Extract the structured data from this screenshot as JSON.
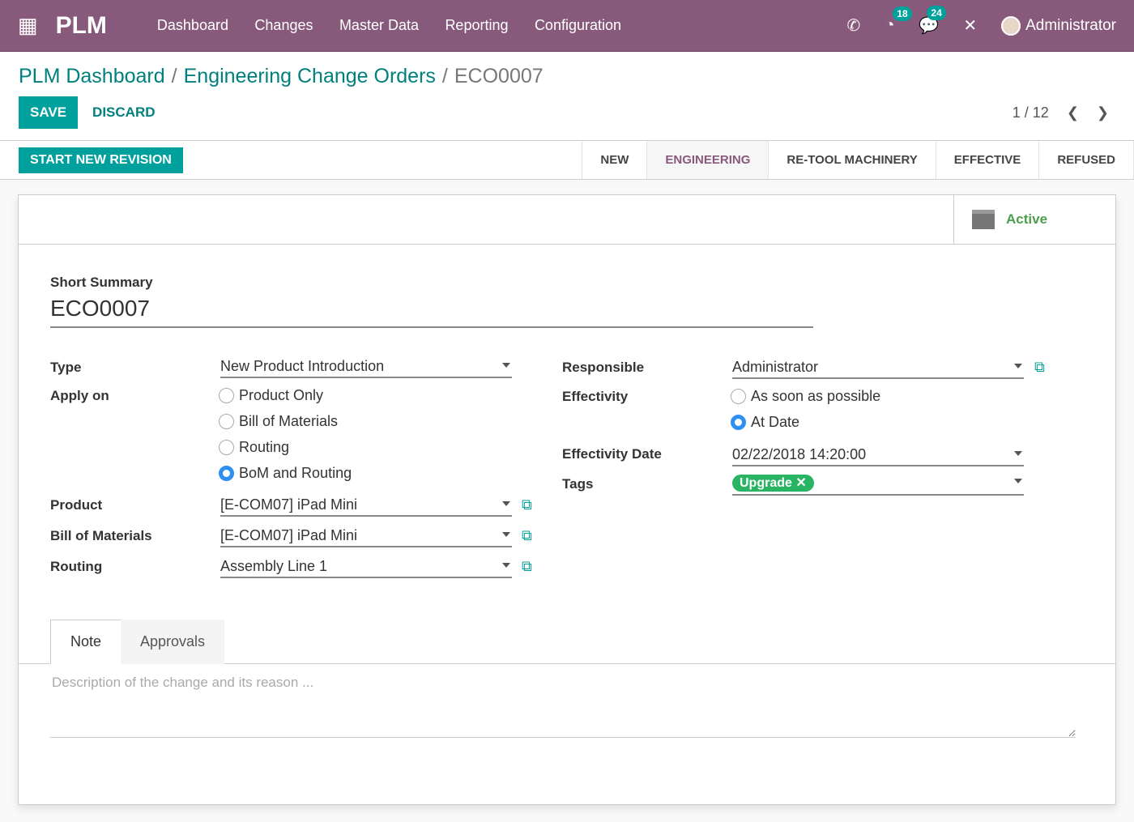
{
  "nav": {
    "brand": "PLM",
    "menu": [
      "Dashboard",
      "Changes",
      "Master Data",
      "Reporting",
      "Configuration"
    ],
    "activities_count": "18",
    "messages_count": "24",
    "user": "Administrator"
  },
  "breadcrumb": {
    "items": [
      "PLM Dashboard",
      "Engineering Change Orders"
    ],
    "current": "ECO0007"
  },
  "buttons": {
    "save": "SAVE",
    "discard": "DISCARD",
    "start_revision": "START NEW REVISION"
  },
  "pager": {
    "text": "1 / 12"
  },
  "stages": {
    "items": [
      "NEW",
      "ENGINEERING",
      "RE-TOOL MACHINERY",
      "EFFECTIVE",
      "REFUSED"
    ],
    "active": "ENGINEERING"
  },
  "active_button": "Active",
  "form": {
    "short_summary_label": "Short Summary",
    "short_summary": "ECO0007",
    "type_label": "Type",
    "type": "New Product Introduction",
    "apply_on_label": "Apply on",
    "apply_on_options": [
      "Product Only",
      "Bill of Materials",
      "Routing",
      "BoM and Routing"
    ],
    "apply_on_selected": "BoM and Routing",
    "product_label": "Product",
    "product": "[E-COM07] iPad Mini",
    "bom_label": "Bill of Materials",
    "bom": "[E-COM07] iPad Mini",
    "routing_label": "Routing",
    "routing": "Assembly Line 1",
    "responsible_label": "Responsible",
    "responsible": "Administrator",
    "effectivity_label": "Effectivity",
    "effectivity_options": [
      "As soon as possible",
      "At Date"
    ],
    "effectivity_selected": "At Date",
    "effectivity_date_label": "Effectivity Date",
    "effectivity_date": "02/22/2018 14:20:00",
    "tags_label": "Tags",
    "tags": [
      "Upgrade"
    ]
  },
  "tabs": {
    "items": [
      "Note",
      "Approvals"
    ],
    "active": "Note"
  },
  "note": {
    "placeholder": "Description of the change and its reason ..."
  },
  "colors": {
    "brand": "#875a7b",
    "accent": "#00a09d",
    "tag": "#28b463",
    "active": "#4c9e4c"
  }
}
